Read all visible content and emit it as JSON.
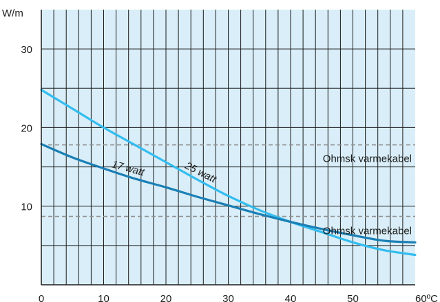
{
  "chart_data": {
    "type": "line",
    "title": "",
    "xlabel": "",
    "ylabel": "",
    "y_unit": "W/m",
    "x_unit_last_tick": "60ºC",
    "xlim": [
      0,
      60
    ],
    "ylim": [
      0,
      35
    ],
    "x_ticks": [
      "0",
      "10",
      "20",
      "30",
      "40",
      "50"
    ],
    "y_ticks": [
      10,
      20,
      30
    ],
    "grid": true,
    "plot_background": "#d9eef8",
    "series": [
      {
        "name": "25 watt",
        "color": "#33bdef",
        "x": [
          0,
          5,
          10,
          15,
          20,
          25,
          30,
          35,
          40,
          45,
          50,
          55,
          60
        ],
        "y": [
          24.8,
          22.4,
          20.0,
          17.8,
          15.6,
          13.4,
          11.3,
          9.5,
          8.0,
          6.7,
          5.4,
          4.4,
          3.8
        ]
      },
      {
        "name": "17 watt",
        "color": "#1a7fb5",
        "x": [
          0,
          5,
          10,
          15,
          20,
          25,
          30,
          35,
          40,
          45,
          50,
          55,
          60
        ],
        "y": [
          17.9,
          16.2,
          14.8,
          13.5,
          12.4,
          11.2,
          10.1,
          9.0,
          8.0,
          7.1,
          6.3,
          5.6,
          5.4
        ]
      }
    ],
    "reference_lines": [
      {
        "y": 17.8,
        "label": "Ohmsk varmekabel",
        "color": "#909090"
      },
      {
        "y": 8.7,
        "label": "Ohmsk varmekabel",
        "color": "#909090"
      }
    ]
  }
}
